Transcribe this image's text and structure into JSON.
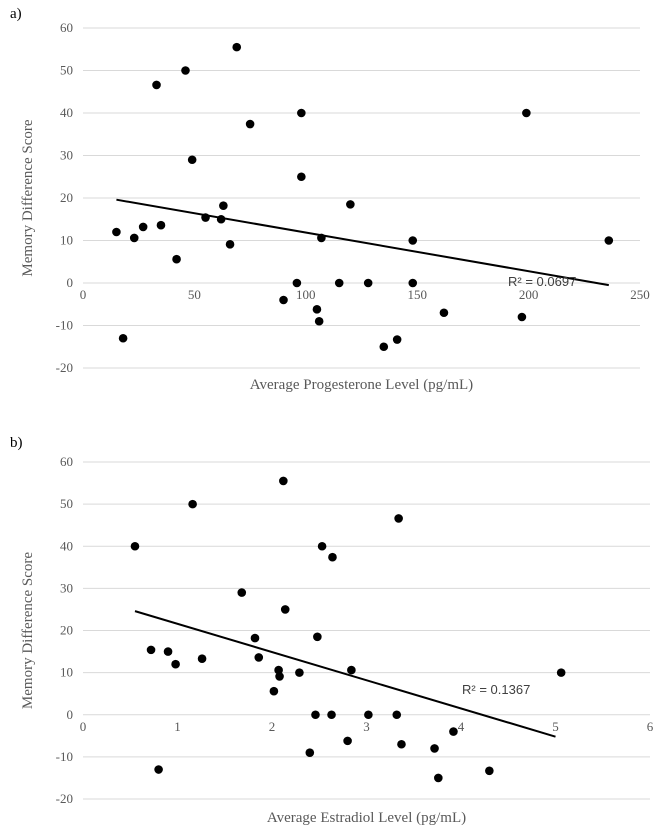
{
  "chart_data": [
    {
      "type": "scatter",
      "panel_label": "a)",
      "xlabel": "Average Progesterone Level (pg/mL)",
      "ylabel": "Memory Difference Score",
      "xlim": [
        0,
        250
      ],
      "ylim": [
        -20,
        60
      ],
      "xticks": [
        0,
        50,
        100,
        150,
        200,
        250
      ],
      "yticks": [
        -20,
        -10,
        0,
        10,
        20,
        30,
        40,
        50,
        60
      ],
      "grid": "horizontal",
      "points": [
        [
          15,
          12
        ],
        [
          18,
          -13
        ],
        [
          23,
          10.6
        ],
        [
          27,
          13.2
        ],
        [
          33,
          46.6
        ],
        [
          35,
          13.6
        ],
        [
          42,
          5.6
        ],
        [
          46,
          50
        ],
        [
          49,
          29
        ],
        [
          55,
          15.4
        ],
        [
          62,
          15
        ],
        [
          63,
          18.2
        ],
        [
          66,
          9.1
        ],
        [
          69,
          55.5
        ],
        [
          75,
          37.4
        ],
        [
          90,
          -4
        ],
        [
          96,
          0
        ],
        [
          98,
          40
        ],
        [
          98,
          25
        ],
        [
          105,
          -6.2
        ],
        [
          106,
          -9
        ],
        [
          107,
          10.6
        ],
        [
          115,
          0
        ],
        [
          120,
          18.5
        ],
        [
          128,
          0
        ],
        [
          135,
          -15
        ],
        [
          141,
          -13.3
        ],
        [
          148,
          0
        ],
        [
          148,
          10
        ],
        [
          162,
          -7
        ],
        [
          197,
          -8
        ],
        [
          199,
          40
        ],
        [
          236,
          10
        ]
      ],
      "trendline": {
        "x": [
          15,
          236
        ],
        "y": [
          19.6,
          -0.5
        ]
      },
      "annotation": "R² = 0.0697"
    },
    {
      "type": "scatter",
      "panel_label": "b)",
      "xlabel": "Average Estradiol Level (pg/mL)",
      "ylabel": "Memory Difference Score",
      "xlim": [
        0,
        6
      ],
      "ylim": [
        -20,
        60
      ],
      "xticks": [
        0,
        1,
        2,
        3,
        4,
        5,
        6
      ],
      "yticks": [
        -20,
        -10,
        0,
        10,
        20,
        30,
        40,
        50,
        60
      ],
      "grid": "horizontal",
      "points": [
        [
          0.55,
          40
        ],
        [
          0.72,
          15.4
        ],
        [
          0.8,
          -13
        ],
        [
          0.9,
          15
        ],
        [
          0.98,
          12
        ],
        [
          1.16,
          50
        ],
        [
          1.26,
          13.3
        ],
        [
          1.68,
          29
        ],
        [
          1.82,
          18.2
        ],
        [
          1.86,
          13.6
        ],
        [
          2.02,
          5.6
        ],
        [
          2.07,
          10.6
        ],
        [
          2.08,
          9.1
        ],
        [
          2.12,
          55.5
        ],
        [
          2.14,
          25
        ],
        [
          2.29,
          10
        ],
        [
          2.4,
          -9
        ],
        [
          2.46,
          0
        ],
        [
          2.48,
          18.5
        ],
        [
          2.53,
          40
        ],
        [
          2.64,
          37.4
        ],
        [
          2.63,
          0
        ],
        [
          2.8,
          -6.2
        ],
        [
          2.84,
          10.6
        ],
        [
          3.02,
          0
        ],
        [
          3.32,
          0
        ],
        [
          3.34,
          46.6
        ],
        [
          3.37,
          -7
        ],
        [
          3.72,
          -8
        ],
        [
          3.76,
          -15
        ],
        [
          3.92,
          -4
        ],
        [
          4.3,
          -13.3
        ],
        [
          5.06,
          10
        ]
      ],
      "trendline": {
        "x": [
          0.55,
          5.0
        ],
        "y": [
          24.6,
          -5.2
        ]
      },
      "annotation": "R² = 0.1367"
    }
  ]
}
